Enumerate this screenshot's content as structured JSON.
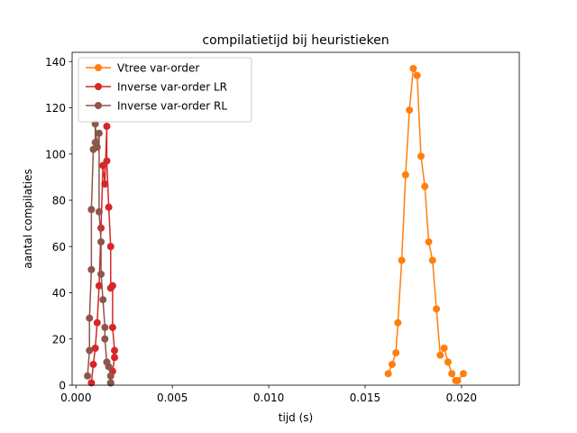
{
  "chart_data": {
    "type": "line",
    "title": "compilatietijd bij heuristieken",
    "xlabel": "tijd (s)",
    "ylabel": "aantal compilaties",
    "xlim": [
      -0.0002,
      0.023
    ],
    "ylim": [
      0,
      144
    ],
    "xticks": [
      0.0,
      0.005,
      0.01,
      0.015,
      0.02
    ],
    "xtick_labels": [
      "0.000",
      "0.005",
      "0.010",
      "0.015",
      "0.020"
    ],
    "yticks": [
      0,
      20,
      40,
      60,
      80,
      100,
      120,
      140
    ],
    "ytick_labels": [
      "0",
      "20",
      "40",
      "60",
      "80",
      "100",
      "120",
      "140"
    ],
    "grid": false,
    "legend_position": "top-left",
    "series": [
      {
        "name": "Vtree var-order",
        "color": "#ff7f0e",
        "points": [
          [
            0.0162,
            5
          ],
          [
            0.0164,
            9
          ],
          [
            0.0166,
            14
          ],
          [
            0.0167,
            27
          ],
          [
            0.0169,
            54
          ],
          [
            0.0171,
            91
          ],
          [
            0.0173,
            119
          ],
          [
            0.0175,
            137
          ],
          [
            0.0177,
            134
          ],
          [
            0.0179,
            99
          ],
          [
            0.0181,
            86
          ],
          [
            0.0183,
            62
          ],
          [
            0.0185,
            54
          ],
          [
            0.0187,
            33
          ],
          [
            0.0189,
            13
          ],
          [
            0.0191,
            16
          ],
          [
            0.0193,
            10
          ],
          [
            0.0195,
            5
          ],
          [
            0.0197,
            2
          ],
          [
            0.0198,
            2
          ],
          [
            0.0201,
            5
          ]
        ]
      },
      {
        "name": "Inverse var-order LR",
        "color": "#d62728",
        "points": [
          [
            0.0008,
            1
          ],
          [
            0.0009,
            9
          ],
          [
            0.001,
            16
          ],
          [
            0.0011,
            27
          ],
          [
            0.0012,
            43
          ],
          [
            0.0013,
            68
          ],
          [
            0.0014,
            95
          ],
          [
            0.0015,
            87
          ],
          [
            0.0016,
            112
          ],
          [
            0.0016,
            97
          ],
          [
            0.0017,
            77
          ],
          [
            0.0018,
            60
          ],
          [
            0.0018,
            42
          ],
          [
            0.0019,
            43
          ],
          [
            0.0019,
            25
          ],
          [
            0.002,
            15
          ],
          [
            0.002,
            12
          ],
          [
            0.0019,
            6
          ],
          [
            0.0018,
            1
          ]
        ]
      },
      {
        "name": "Inverse var-order RL",
        "color": "#8c564b",
        "points": [
          [
            0.0006,
            4
          ],
          [
            0.0007,
            15
          ],
          [
            0.0007,
            29
          ],
          [
            0.0008,
            50
          ],
          [
            0.0008,
            76
          ],
          [
            0.0009,
            102
          ],
          [
            0.001,
            105
          ],
          [
            0.001,
            113
          ],
          [
            0.0011,
            103
          ],
          [
            0.0012,
            109
          ],
          [
            0.0012,
            75
          ],
          [
            0.0013,
            62
          ],
          [
            0.0013,
            48
          ],
          [
            0.0014,
            37
          ],
          [
            0.0015,
            25
          ],
          [
            0.0015,
            20
          ],
          [
            0.0016,
            10
          ],
          [
            0.0017,
            8
          ],
          [
            0.0018,
            4
          ],
          [
            0.0018,
            1
          ]
        ]
      }
    ]
  }
}
